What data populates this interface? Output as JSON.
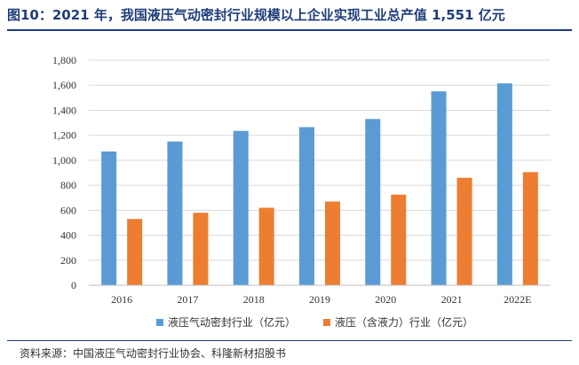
{
  "figure": {
    "title": "图10：2021 年，我国液压气动密封行业规模以上企业实现工业总产值 1,551 亿元",
    "source": "资料来源：中国液压气动密封行业协会、科隆新材招股书"
  },
  "colors": {
    "series1": "#5b9bd5",
    "series2": "#ed7d31",
    "grid": "#d9d9d9",
    "title": "#1f3d7a"
  },
  "chart_data": {
    "type": "bar",
    "title": "",
    "xlabel": "",
    "ylabel": "",
    "categories": [
      "2016",
      "2017",
      "2018",
      "2019",
      "2020",
      "2021",
      "2022E"
    ],
    "series": [
      {
        "name": "液压气动密封行业（亿元）",
        "values": [
          1070,
          1150,
          1235,
          1265,
          1330,
          1551,
          1615
        ]
      },
      {
        "name": "液压（含液力）行业（亿元）",
        "values": [
          530,
          580,
          620,
          670,
          725,
          860,
          905
        ]
      }
    ],
    "ylim": [
      0,
      1800
    ],
    "yticks": [
      0,
      200,
      400,
      600,
      800,
      1000,
      1200,
      1400,
      1600,
      1800
    ],
    "ytick_labels": [
      "0",
      "200",
      "400",
      "600",
      "800",
      "1,000",
      "1,200",
      "1,400",
      "1,600",
      "1,800"
    ],
    "grid": true,
    "legend_position": "bottom-center"
  }
}
